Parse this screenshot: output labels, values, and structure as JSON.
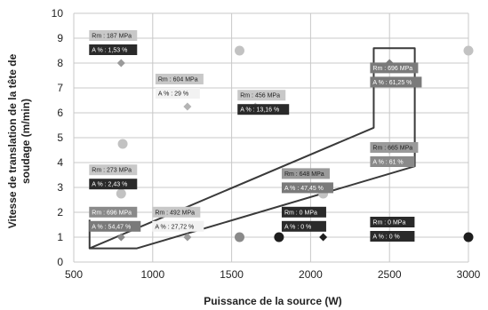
{
  "chart_data": {
    "type": "scatter",
    "xlabel": "Puissance de la source (W)",
    "ylabel_lines": [
      "Vitesse de translation de la tête de",
      "soudage (m/min)"
    ],
    "xlim": [
      500,
      3000
    ],
    "ylim": [
      0,
      10
    ],
    "xticks": [
      "500",
      "1000",
      "1500",
      "2000",
      "2500",
      "3000"
    ],
    "yticks": [
      "0",
      "1",
      "2",
      "3",
      "4",
      "5",
      "6",
      "7",
      "8",
      "9",
      "10"
    ],
    "grid": true,
    "points": [
      {
        "x": 800,
        "y": 8,
        "shape": "diamond",
        "color": "#9a9a9a"
      },
      {
        "x": 810,
        "y": 4.75,
        "shape": "circle",
        "color": "#c2c2c2"
      },
      {
        "x": 800,
        "y": 2.75,
        "shape": "circle",
        "color": "#c2c2c2"
      },
      {
        "x": 800,
        "y": 1,
        "shape": "diamond",
        "color": "#8a8a8a"
      },
      {
        "x": 1220,
        "y": 6.25,
        "shape": "diamond",
        "color": "#b4b4b4"
      },
      {
        "x": 1220,
        "y": 1,
        "shape": "diamond",
        "color": "#9a9a9a"
      },
      {
        "x": 1550,
        "y": 8.5,
        "shape": "circle",
        "color": "#c2c2c2"
      },
      {
        "x": 1550,
        "y": 1,
        "shape": "circle",
        "color": "#8a8a8a"
      },
      {
        "x": 1650,
        "y": 6.25,
        "shape": "diamond",
        "color": "#b4b4b4"
      },
      {
        "x": 1800,
        "y": 1,
        "shape": "circle",
        "color": "#1e1e1e"
      },
      {
        "x": 2080,
        "y": 2.75,
        "shape": "circle",
        "color": "#c2c2c2"
      },
      {
        "x": 2080,
        "y": 1,
        "shape": "diamond",
        "color": "#1e1e1e"
      },
      {
        "x": 2500,
        "y": 8,
        "shape": "diamond",
        "color": "#7a7a7a"
      },
      {
        "x": 2500,
        "y": 4.5,
        "shape": "diamond",
        "color": "#c2c2c2"
      },
      {
        "x": 2500,
        "y": 1,
        "shape": "diamond",
        "color": "#1e1e1e"
      },
      {
        "x": 3000,
        "y": 8.5,
        "shape": "circle",
        "color": "#c2c2c2"
      },
      {
        "x": 3000,
        "y": 1,
        "shape": "circle",
        "color": "#1e1e1e"
      }
    ],
    "process_window": {
      "x": [
        600,
        600,
        2400,
        2400,
        2660,
        2660,
        900,
        600
      ],
      "y": [
        1.7,
        0.55,
        5.4,
        8.6,
        8.6,
        3.85,
        0.55,
        0.55
      ]
    },
    "annotations": [
      {
        "rm": "Rm : 187 MPa",
        "a": "A % : 1,53 %",
        "x": 800,
        "y": 9,
        "rm_fill": "#c8c8c8",
        "a_fill": "#2a2a2a"
      },
      {
        "rm": "Rm : 604 MPa",
        "a": "A % : 29 %",
        "x": 1220,
        "y": 7.25,
        "rm_fill": "#c8c8c8",
        "a_fill": "#f2f2f2"
      },
      {
        "rm": "Rm : 456 MPa",
        "a": "A % : 13,16 %",
        "x": 1740,
        "y": 6.6,
        "rm_fill": "#c8c8c8",
        "a_fill": "#2a2a2a"
      },
      {
        "rm": "Rm : 273 MPa",
        "a": "A % : 2,43 %",
        "x": 800,
        "y": 3.6,
        "rm_fill": "#c8c8c8",
        "a_fill": "#2a2a2a"
      },
      {
        "rm": "Rm : 696 MPa",
        "a": "A % : 54,47 %",
        "x": 800,
        "y": 1.9,
        "rm_fill": "#8a8a8a",
        "a_fill": "#7a7a7a"
      },
      {
        "rm": "Rm : 492 MPa",
        "a": "A % : 27,72 %",
        "x": 1200,
        "y": 1.9,
        "rm_fill": "#c8c8c8",
        "a_fill": "#f2f2f2"
      },
      {
        "rm": "Rm : 648 MPa",
        "a": "A % : 47,45 %",
        "x": 2020,
        "y": 3.45,
        "rm_fill": "#9a9a9a",
        "a_fill": "#7a7a7a"
      },
      {
        "rm": "Rm : 0 MPa",
        "a": "A % : 0 %",
        "x": 2020,
        "y": 1.9,
        "rm_fill": "#2a2a2a",
        "a_fill": "#2a2a2a"
      },
      {
        "rm": "Rm : 696 MPa",
        "a": "A % : 61,25 %",
        "x": 2580,
        "y": 7.7,
        "rm_fill": "#7a7a7a",
        "a_fill": "#7a7a7a"
      },
      {
        "rm": "Rm : 665 MPa",
        "a": "A % : 61 %",
        "x": 2580,
        "y": 4.5,
        "rm_fill": "#9a9a9a",
        "a_fill": "#8a8a8a"
      },
      {
        "rm": "Rm : 0 MPa",
        "a": "A % : 0 %",
        "x": 2580,
        "y": 1.5,
        "rm_fill": "#2a2a2a",
        "a_fill": "#2a2a2a"
      }
    ]
  }
}
